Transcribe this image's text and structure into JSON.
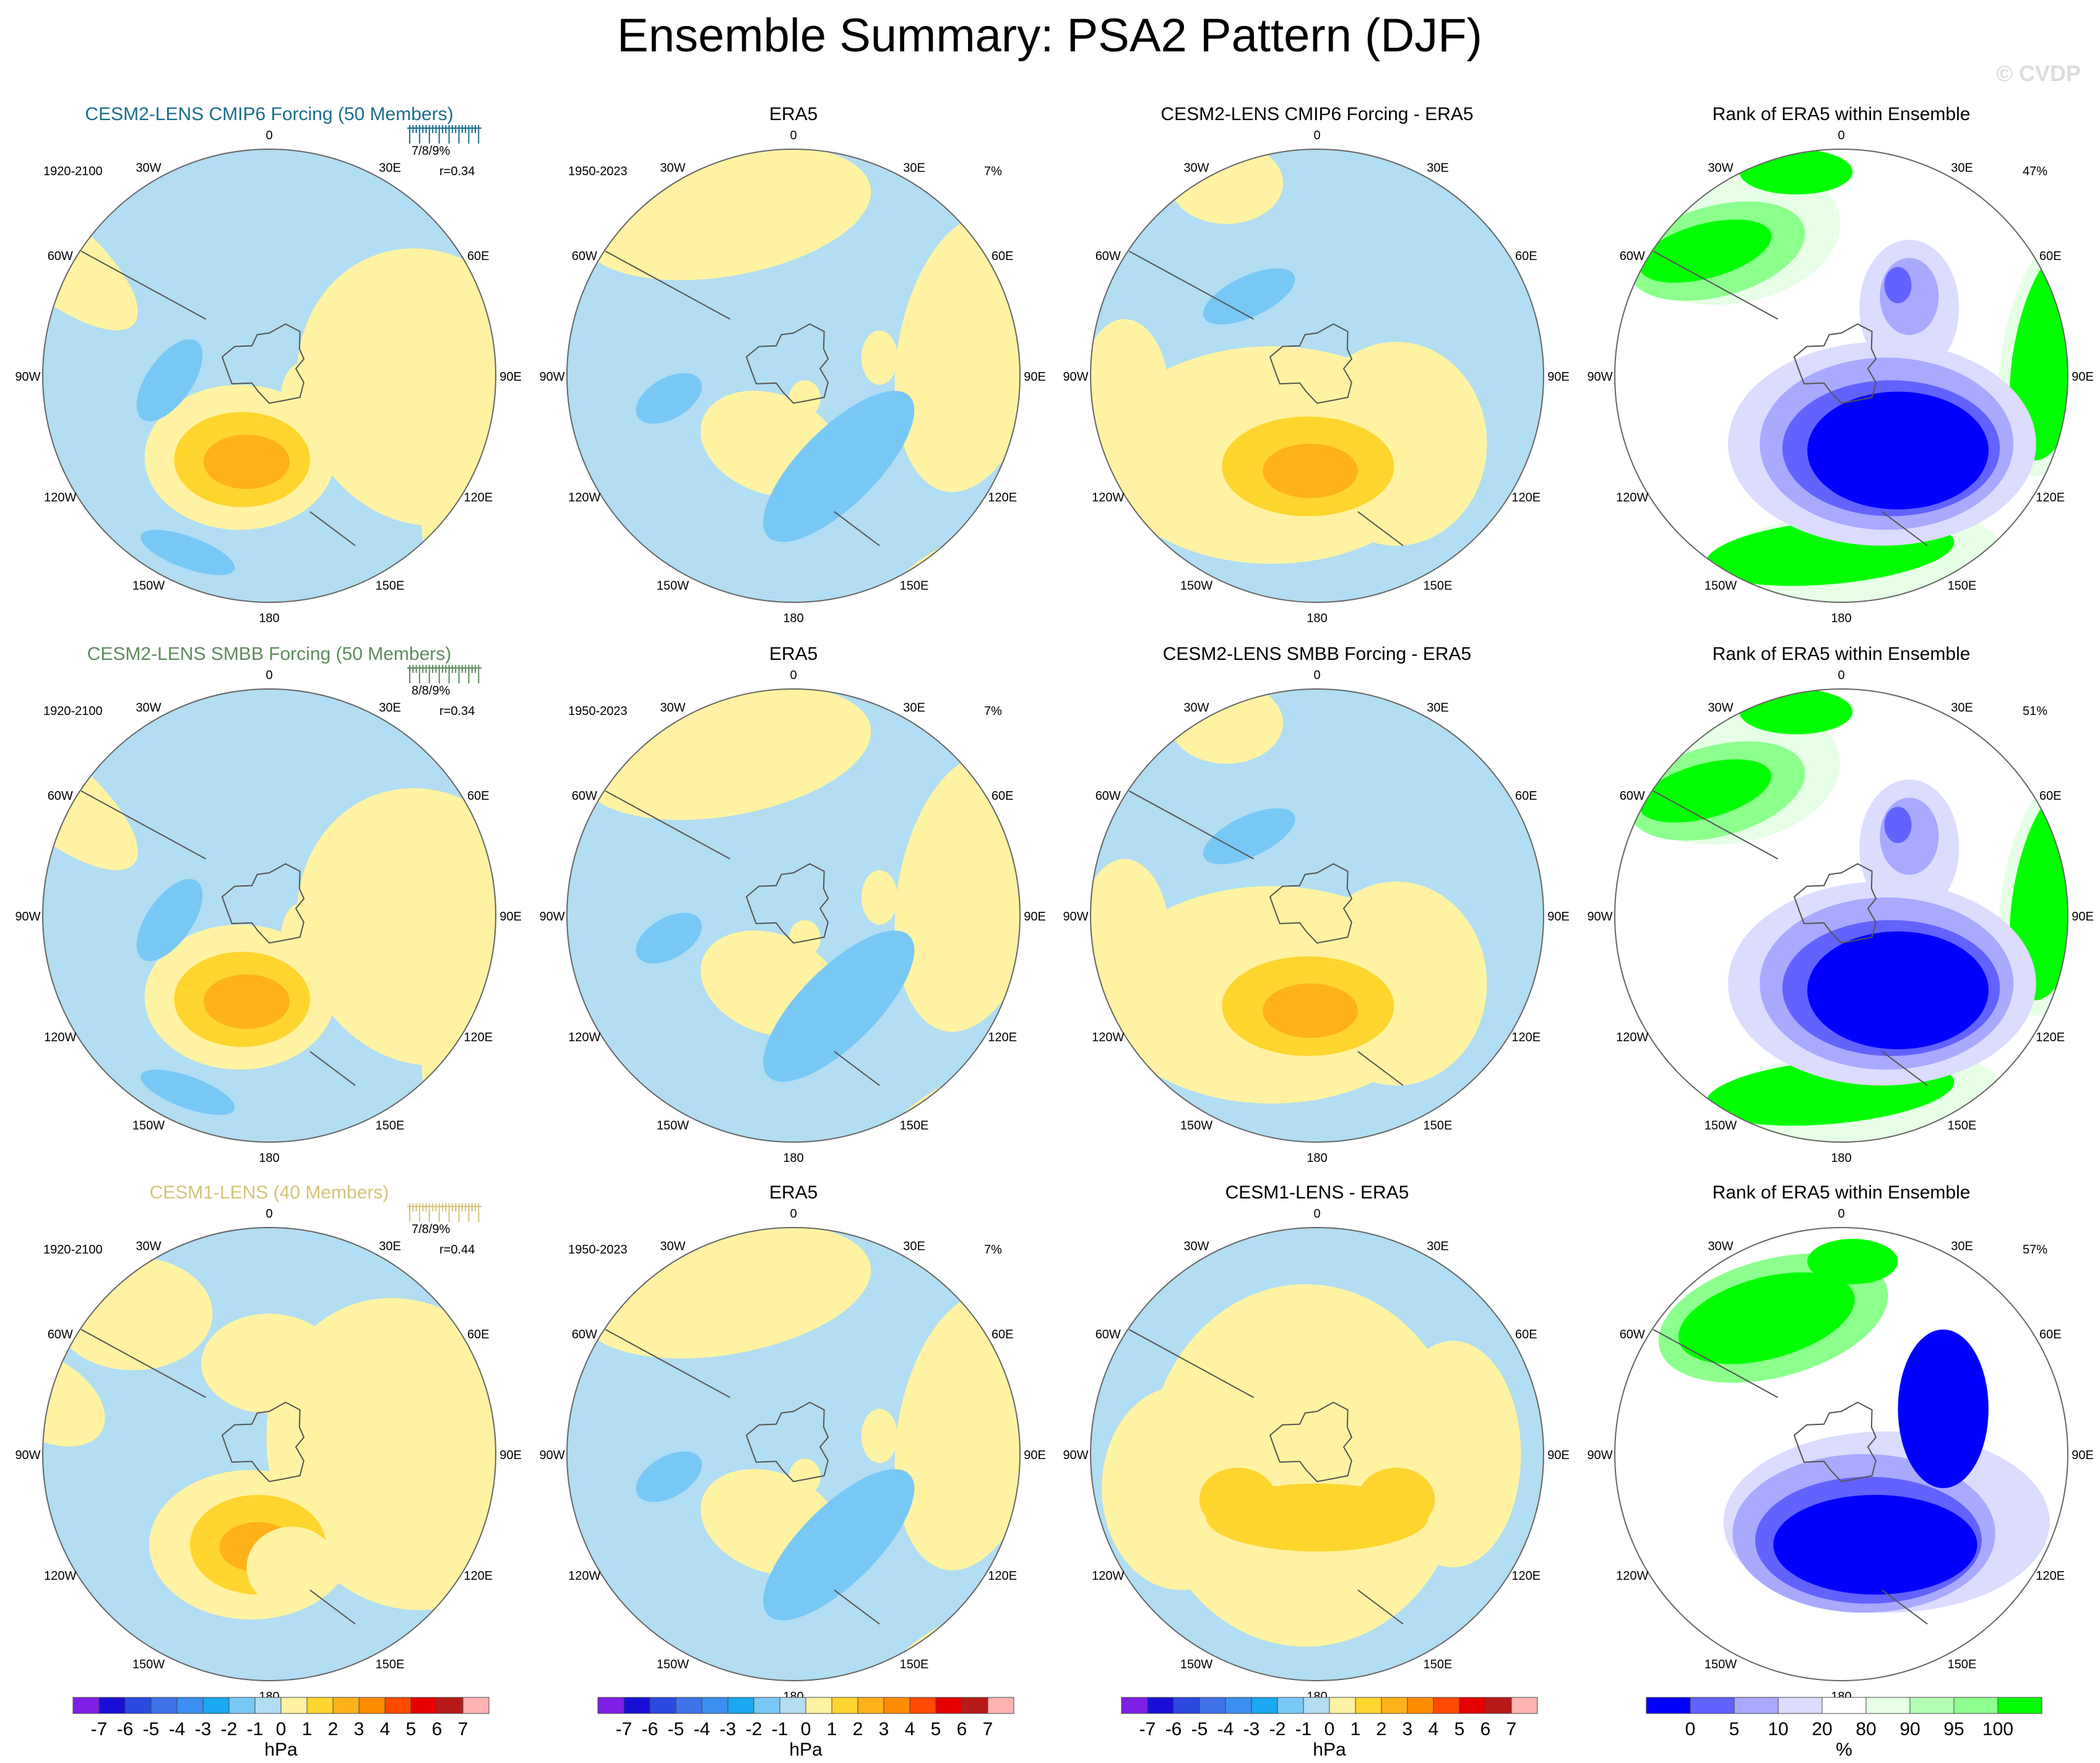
{
  "title": "Ensemble Summary: PSA2 Pattern (DJF)",
  "watermark": "© CVDP",
  "lon_labels": [
    "0",
    "30E",
    "60E",
    "90E",
    "120E",
    "150E",
    "180",
    "150W",
    "120W",
    "90W",
    "60W",
    "30W"
  ],
  "chart_data": {
    "type": "heatmap",
    "projection": "south polar stereographic",
    "variable": "sea level pressure PSA2 pattern (DJF)",
    "rows": [
      {
        "ensemble": {
          "title": "CESM2-LENS CMIP6 Forcing (50 Members)",
          "color": "#1a6e8c",
          "years": "1920-2100",
          "pct": "7/8/9%",
          "r": "r=0.34"
        },
        "obs": {
          "title": "ERA5",
          "years": "1950-2023",
          "pct": "7%"
        },
        "diff": {
          "title": "CESM2-LENS CMIP6 Forcing - ERA5"
        },
        "rank": {
          "title": "Rank of ERA5 within Ensemble",
          "pct": "47%"
        }
      },
      {
        "ensemble": {
          "title": "CESM2-LENS SMBB Forcing (50 Members)",
          "color": "#5e8a5e",
          "years": "1920-2100",
          "pct": "8/8/9%",
          "r": "r=0.34"
        },
        "obs": {
          "title": "ERA5",
          "years": "1950-2023",
          "pct": "7%"
        },
        "diff": {
          "title": "CESM2-LENS SMBB Forcing - ERA5"
        },
        "rank": {
          "title": "Rank of ERA5 within Ensemble",
          "pct": "51%"
        }
      },
      {
        "ensemble": {
          "title": "CESM1-LENS (40 Members)",
          "color": "#d4c47a",
          "years": "1920-2100",
          "pct": "7/8/9%",
          "r": "r=0.44"
        },
        "obs": {
          "title": "ERA5",
          "years": "1950-2023",
          "pct": "7%"
        },
        "diff": {
          "title": "CESM1-LENS - ERA5"
        },
        "rank": {
          "title": "Rank of ERA5 within Ensemble",
          "pct": "57%"
        }
      }
    ],
    "colorbars": [
      {
        "unit": "hPa",
        "labels": [
          "-7",
          "-6",
          "-5",
          "-4",
          "-3",
          "-2",
          "-1",
          "0",
          "1",
          "2",
          "3",
          "4",
          "5",
          "6",
          "7"
        ],
        "colors": [
          "#7f1fe6",
          "#1a0fd6",
          "#2c49e0",
          "#3f73e8",
          "#3b8ff2",
          "#1aa8f0",
          "#78c8f5",
          "#b2ddf2",
          "#fff3a3",
          "#ffd52e",
          "#ffb21a",
          "#ff8c00",
          "#ff4a00",
          "#e60000",
          "#b81a1a",
          "#ffb3b3"
        ]
      },
      {
        "unit": "%",
        "labels": [
          "0",
          "5",
          "10",
          "20",
          "80",
          "90",
          "95",
          "100"
        ],
        "colors": [
          "#0000ff",
          "#6262ff",
          "#a9a9ff",
          "#dcdcff",
          "#ffffff",
          "#e6ffe6",
          "#b4ffb4",
          "#8cff8c",
          "#00ff00"
        ]
      }
    ],
    "field_colors": {
      "n5": "#3b8ff2",
      "n2": "#78c8f5",
      "n1": "#b2ddf2",
      "p0": "#fff3a3",
      "p1": "#ffd52e",
      "p2": "#ffb21a",
      "r0": "#0000ff",
      "r5": "#6262ff",
      "r10": "#a9a9ff",
      "r20": "#dcdcff",
      "r90": "#e6ffe6",
      "r95": "#b4ffb4",
      "r97": "#8cff8c",
      "r100": "#00ff00"
    }
  }
}
